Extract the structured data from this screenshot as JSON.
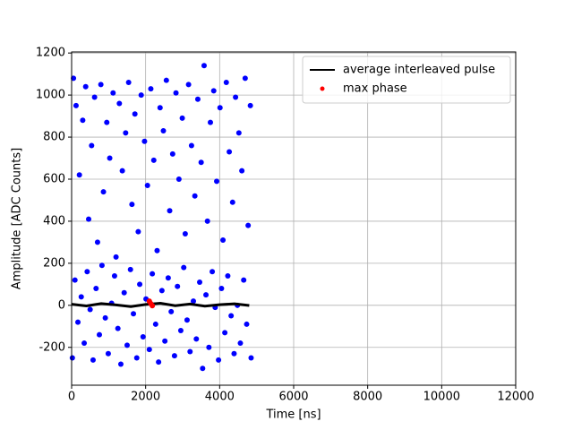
{
  "chart_data": {
    "type": "scatter",
    "xlabel": "Time [ns]",
    "ylabel": "Amplitude [ADC Counts]",
    "xlim": [
      0,
      12000
    ],
    "xticks": [
      0,
      2000,
      4000,
      6000,
      8000,
      10000,
      12000
    ],
    "ylim": [
      -380,
      1205
    ],
    "yticks": [
      -200,
      0,
      200,
      400,
      600,
      800,
      1000,
      1200
    ],
    "grid": true,
    "legend": "upper right",
    "series": [
      {
        "color": "#0000ff",
        "style": "points",
        "x": [
          50,
          120,
          210,
          300,
          380,
          460,
          540,
          620,
          700,
          790,
          860,
          950,
          1030,
          1120,
          1200,
          1290,
          1370,
          1460,
          1540,
          1630,
          1710,
          1800,
          1880,
          1970,
          2050,
          2140,
          2220,
          2310,
          2390,
          2480,
          2560,
          2650,
          2730,
          2820,
          2900,
          2990,
          3070,
          3160,
          3240,
          3330,
          3410,
          3500,
          3580,
          3670,
          3750,
          3840,
          3920,
          4010,
          4090,
          4180,
          4260,
          4350,
          4430,
          4520,
          4600,
          4690,
          4770,
          4830,
          20,
          90,
          170,
          260,
          340,
          420,
          500,
          580,
          660,
          750,
          820,
          910,
          990,
          1080,
          1160,
          1250,
          1330,
          1420,
          1500,
          1590,
          1670,
          1760,
          1840,
          1930,
          2010,
          2100,
          2180,
          2270,
          2350,
          2440,
          2520,
          2610,
          2690,
          2780,
          2860,
          2950,
          3030,
          3120,
          3200,
          3290,
          3370,
          3460,
          3540,
          3630,
          3710,
          3800,
          3880,
          3970,
          4050,
          4140,
          4220,
          4310,
          4390,
          4480,
          4560,
          4650,
          4730,
          4850
        ],
        "values": [
          1080,
          950,
          620,
          880,
          1040,
          410,
          760,
          990,
          300,
          1050,
          540,
          870,
          700,
          1010,
          230,
          960,
          640,
          820,
          1060,
          480,
          910,
          350,
          1000,
          780,
          570,
          1030,
          690,
          260,
          940,
          830,
          1070,
          450,
          720,
          1010,
          600,
          890,
          340,
          1050,
          760,
          520,
          980,
          680,
          1140,
          400,
          870,
          1020,
          590,
          940,
          310,
          1060,
          730,
          490,
          990,
          820,
          640,
          1080,
          380,
          950,
          -250,
          120,
          -80,
          40,
          -180,
          160,
          -20,
          -260,
          80,
          -140,
          190,
          -60,
          -230,
          10,
          140,
          -110,
          -280,
          60,
          -190,
          170,
          -40,
          -250,
          100,
          -150,
          30,
          -210,
          150,
          -90,
          -270,
          70,
          -170,
          130,
          -30,
          -240,
          90,
          -120,
          180,
          -70,
          -220,
          20,
          -160,
          110,
          -300,
          50,
          -200,
          160,
          -10,
          -260,
          80,
          -130,
          140,
          -50,
          -230,
          0,
          -180,
          120,
          -90,
          -250
        ]
      },
      {
        "name": "average interleaved pulse",
        "color": "#000000",
        "style": "line",
        "x": [
          0,
          400,
          800,
          1200,
          1600,
          2000,
          2400,
          2800,
          3200,
          3600,
          4000,
          4400,
          4800
        ],
        "values": [
          5,
          -3,
          8,
          2,
          -6,
          4,
          10,
          -2,
          6,
          -4,
          3,
          7,
          -1
        ]
      },
      {
        "name": "max phase",
        "color": "#ff0000",
        "style": "points",
        "x": [
          2100,
          2140,
          2180
        ],
        "values": [
          20,
          8,
          -2
        ]
      }
    ]
  }
}
